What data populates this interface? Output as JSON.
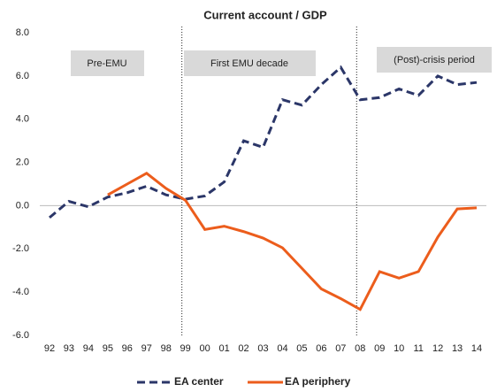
{
  "chart_data": {
    "type": "line",
    "title": "Current account / GDP",
    "categories": [
      "92",
      "93",
      "94",
      "95",
      "96",
      "97",
      "98",
      "99",
      "00",
      "01",
      "02",
      "03",
      "04",
      "05",
      "06",
      "07",
      "08",
      "09",
      "10",
      "11",
      "12",
      "13",
      "14"
    ],
    "series": [
      {
        "name": "EA center",
        "color": "#2b3668",
        "dashed": true,
        "values": [
          -0.55,
          0.2,
          -0.05,
          0.4,
          0.6,
          0.9,
          0.5,
          0.3,
          0.45,
          1.1,
          3.0,
          2.7,
          4.9,
          4.65,
          5.6,
          6.4,
          4.9,
          5.0,
          5.4,
          5.1,
          6.0,
          5.6,
          5.7
        ]
      },
      {
        "name": "EA periphery",
        "color": "#ec5d1c",
        "dashed": false,
        "values": [
          null,
          null,
          null,
          0.5,
          1.0,
          1.5,
          0.8,
          0.25,
          -1.1,
          -0.95,
          -1.2,
          -1.5,
          -1.95,
          -2.9,
          -3.85,
          -4.3,
          -4.8,
          -3.05,
          -3.35,
          -3.05,
          -1.45,
          -0.15,
          -0.1
        ]
      }
    ],
    "ylim": [
      -6,
      8
    ],
    "yticks": [
      {
        "value": -6,
        "label": "-6.0"
      },
      {
        "value": -4,
        "label": "-4.0"
      },
      {
        "value": -2,
        "label": "-2.0"
      },
      {
        "value": 0,
        "label": "0.0"
      },
      {
        "value": 2,
        "label": "2.0"
      },
      {
        "value": 4,
        "label": "4.0"
      },
      {
        "value": 6,
        "label": "6.0"
      },
      {
        "value": 8,
        "label": "8.0"
      }
    ],
    "annotations": [
      "Pre-EMU",
      "First EMU decade",
      "(Post)-crisis period"
    ],
    "legend": "bottom"
  }
}
